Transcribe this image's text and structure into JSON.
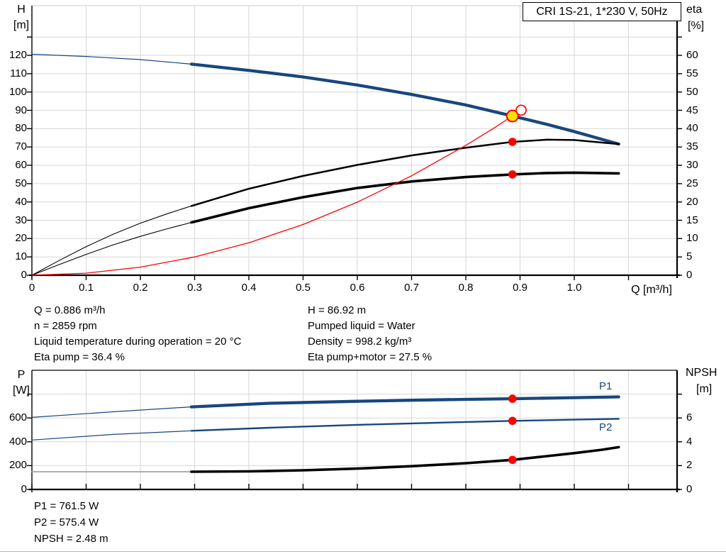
{
  "title": "CRI 1S-21, 1*230 V, 50Hz",
  "colors": {
    "curve_blue": "#17477e",
    "red": "#fe0000",
    "yellow": "#ffe000",
    "black": "#000000",
    "grid": "#d7d7d7",
    "npsh_grey": "#9b9b9b",
    "label_blue": "#17477e"
  },
  "chart_data": [
    {
      "type": "line",
      "name": "qh-efficiency-chart",
      "x": {
        "label": "Q [m³/h]",
        "tick_min": 0,
        "tick_max": 1.1,
        "tick_step": 0.1,
        "label_max": 1.0
      },
      "y_left": {
        "name": "H",
        "unit": "[m]",
        "axis": "H",
        "tick_min": 0,
        "tick_max": 130,
        "tick_step": 10,
        "label_max": 120
      },
      "y_right": {
        "name": "eta",
        "unit": "[%]",
        "axis": "eta",
        "tick_min": 0,
        "tick_max": 65,
        "tick_step": 5,
        "label_max": 60
      },
      "series": [
        {
          "name": "head-curve-thin",
          "axis": "H",
          "style": "blue-thin",
          "points": [
            [
              0,
              120.6
            ],
            [
              0.1,
              119.4
            ],
            [
              0.2,
              117.7
            ],
            [
              0.294,
              115.2
            ]
          ]
        },
        {
          "name": "head-curve",
          "axis": "H",
          "style": "blue-thick",
          "points": [
            [
              0.294,
              115.2
            ],
            [
              0.4,
              111.8
            ],
            [
              0.5,
              108.2
            ],
            [
              0.6,
              103.8
            ],
            [
              0.7,
              98.7
            ],
            [
              0.8,
              92.9
            ],
            [
              0.886,
              86.92
            ],
            [
              0.95,
              82.3
            ],
            [
              1.0,
              78.4
            ],
            [
              1.082,
              71.6
            ]
          ]
        },
        {
          "name": "eta-pump-curve-thin",
          "axis": "eta",
          "style": "black-thin",
          "points": [
            [
              0,
              0
            ],
            [
              0.05,
              4.0
            ],
            [
              0.1,
              7.8
            ],
            [
              0.15,
              11.2
            ],
            [
              0.2,
              14.2
            ],
            [
              0.25,
              16.8
            ],
            [
              0.294,
              18.9
            ]
          ]
        },
        {
          "name": "eta-pump-curve",
          "axis": "eta",
          "style": "black-medium",
          "points": [
            [
              0.294,
              18.9
            ],
            [
              0.4,
              23.6
            ],
            [
              0.5,
              27.1
            ],
            [
              0.6,
              30.1
            ],
            [
              0.7,
              32.7
            ],
            [
              0.8,
              34.8
            ],
            [
              0.886,
              36.4
            ],
            [
              0.95,
              37.0
            ],
            [
              1.0,
              36.9
            ],
            [
              1.082,
              35.8
            ]
          ]
        },
        {
          "name": "eta-pump-motor-curve-thin",
          "axis": "eta",
          "style": "black-thin",
          "points": [
            [
              0,
              0
            ],
            [
              0.05,
              2.9
            ],
            [
              0.1,
              5.7
            ],
            [
              0.15,
              8.3
            ],
            [
              0.2,
              10.6
            ],
            [
              0.25,
              12.7
            ],
            [
              0.294,
              14.4
            ]
          ]
        },
        {
          "name": "eta-pump-motor-curve",
          "axis": "eta",
          "style": "black-thick",
          "points": [
            [
              0.294,
              14.4
            ],
            [
              0.4,
              18.3
            ],
            [
              0.5,
              21.3
            ],
            [
              0.6,
              23.8
            ],
            [
              0.7,
              25.6
            ],
            [
              0.8,
              26.8
            ],
            [
              0.886,
              27.5
            ],
            [
              0.95,
              27.9
            ],
            [
              1.0,
              28.0
            ],
            [
              1.082,
              27.8
            ]
          ]
        },
        {
          "name": "system-curve",
          "axis": "H",
          "style": "red-thin",
          "points": [
            [
              0,
              0
            ],
            [
              0.1,
              1.11
            ],
            [
              0.2,
              4.43
            ],
            [
              0.3,
              9.97
            ],
            [
              0.4,
              17.72
            ],
            [
              0.5,
              27.68
            ],
            [
              0.6,
              39.86
            ],
            [
              0.7,
              54.26
            ],
            [
              0.8,
              70.87
            ],
            [
              0.85,
              80.0
            ],
            [
              0.886,
              86.92
            ],
            [
              0.902,
              90.1
            ]
          ]
        }
      ],
      "markers": [
        {
          "name": "duty-point-actual",
          "axis": "H",
          "q": 0.886,
          "value": 86.92,
          "style": "yellow-dot"
        },
        {
          "name": "duty-point-requested",
          "axis": "H",
          "q": 0.902,
          "value": 90.1,
          "style": "open-red-circle"
        },
        {
          "name": "eta-pump-operating-point",
          "axis": "eta",
          "q": 0.886,
          "value": 36.4,
          "style": "red-dot"
        },
        {
          "name": "eta-pump-motor-operating-point",
          "axis": "eta",
          "q": 0.886,
          "value": 27.5,
          "style": "red-dot"
        }
      ]
    },
    {
      "type": "line",
      "name": "power-npsh-chart",
      "x": {
        "label": "",
        "tick_min": 0,
        "tick_max": 1.1,
        "tick_step": 0.1,
        "label_max": -1
      },
      "y_left": {
        "name": "P",
        "unit": "[W]",
        "axis": "P",
        "tick_min": 0,
        "tick_max": 800,
        "tick_step": 200,
        "label_max": 600
      },
      "y_right": {
        "name": "NPSH",
        "unit": "[m]",
        "axis": "NPSH",
        "tick_min": 0,
        "tick_max": 8,
        "tick_step": 2,
        "label_max": 6
      },
      "series_labels": {
        "p1": "P1",
        "p2": "P2"
      },
      "series": [
        {
          "name": "p1-curve-thin",
          "axis": "P",
          "style": "blue-thin",
          "points": [
            [
              0,
              605
            ],
            [
              0.15,
              652
            ],
            [
              0.294,
              693
            ]
          ]
        },
        {
          "name": "p1-curve",
          "axis": "P",
          "style": "blue-thick",
          "points": [
            [
              0.294,
              693
            ],
            [
              0.438,
              723
            ],
            [
              0.6,
              740
            ],
            [
              0.7,
              749
            ],
            [
              0.8,
              756
            ],
            [
              0.886,
              761.5
            ],
            [
              1.0,
              770
            ],
            [
              1.082,
              777
            ]
          ]
        },
        {
          "name": "p2-curve-thin",
          "axis": "P",
          "style": "blue-thin",
          "points": [
            [
              0,
              415
            ],
            [
              0.15,
              462
            ],
            [
              0.294,
              492
            ]
          ]
        },
        {
          "name": "p2-curve",
          "axis": "P",
          "style": "blue-medium",
          "points": [
            [
              0.294,
              492
            ],
            [
              0.438,
              518
            ],
            [
              0.6,
              542
            ],
            [
              0.7,
              554
            ],
            [
              0.8,
              566
            ],
            [
              0.886,
              575.4
            ],
            [
              1.0,
              586
            ],
            [
              1.082,
              593
            ]
          ]
        },
        {
          "name": "npsh-curve-thin",
          "axis": "NPSH",
          "style": "grey-thin",
          "points": [
            [
              0,
              1.48
            ],
            [
              0.294,
              1.48
            ]
          ]
        },
        {
          "name": "npsh-curve",
          "axis": "NPSH",
          "style": "black-thick",
          "points": [
            [
              0.294,
              1.49
            ],
            [
              0.4,
              1.52
            ],
            [
              0.5,
              1.61
            ],
            [
              0.6,
              1.75
            ],
            [
              0.7,
              1.95
            ],
            [
              0.8,
              2.2
            ],
            [
              0.886,
              2.48
            ],
            [
              0.95,
              2.8
            ],
            [
              1.0,
              3.05
            ],
            [
              1.05,
              3.33
            ],
            [
              1.082,
              3.55
            ]
          ]
        }
      ],
      "markers": [
        {
          "name": "p1-operating-point",
          "axis": "P",
          "q": 0.886,
          "value": 761.5,
          "style": "red-dot"
        },
        {
          "name": "p2-operating-point",
          "axis": "P",
          "q": 0.886,
          "value": 575.4,
          "style": "red-dot"
        },
        {
          "name": "npsh-operating-point",
          "axis": "NPSH",
          "q": 0.886,
          "value": 2.48,
          "style": "red-dot"
        }
      ]
    }
  ],
  "info_panel": {
    "left": [
      "Q = 0.886 m³/h",
      "n = 2859 rpm",
      "Liquid temperature during operation = 20 °C",
      "Eta pump = 36.4 %"
    ],
    "right": [
      "H = 86.92 m",
      "Pumped liquid = Water",
      "Density = 998.2 kg/m³",
      "Eta pump+motor = 27.5 %"
    ]
  },
  "result_panel": {
    "lines": [
      "P1 = 761.5 W",
      "P2 = 575.4 W",
      "NPSH = 2.48 m"
    ]
  }
}
